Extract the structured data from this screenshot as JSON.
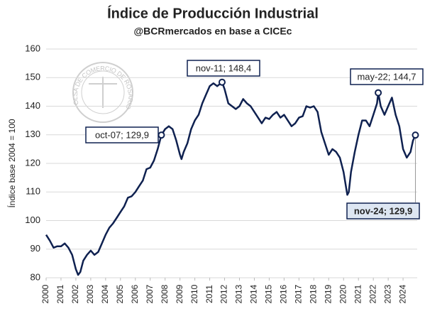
{
  "chart_data": {
    "type": "line",
    "title": "Índice de Producción Industrial",
    "subtitle": "@BCRmercados en base a CICEc",
    "y_label": "Índice base 2004 = 100",
    "watermark": "BOLSA DE COMERCIO DE ROSARIO",
    "color": "#0f2150",
    "x": [
      2000.0,
      2000.25,
      2000.5,
      2000.75,
      2001.0,
      2001.25,
      2001.5,
      2001.75,
      2002.0,
      2002.15,
      2002.3,
      2002.5,
      2002.75,
      2003.0,
      2003.25,
      2003.5,
      2003.75,
      2004.0,
      2004.25,
      2004.5,
      2004.75,
      2005.0,
      2005.25,
      2005.5,
      2005.75,
      2006.0,
      2006.25,
      2006.5,
      2006.75,
      2007.0,
      2007.25,
      2007.5,
      2007.75,
      2008.0,
      2008.25,
      2008.5,
      2008.75,
      2009.0,
      2009.1,
      2009.25,
      2009.5,
      2009.75,
      2010.0,
      2010.25,
      2010.5,
      2010.75,
      2011.0,
      2011.25,
      2011.5,
      2011.83,
      2012.0,
      2012.25,
      2012.5,
      2012.75,
      2013.0,
      2013.25,
      2013.5,
      2013.75,
      2014.0,
      2014.25,
      2014.5,
      2014.75,
      2015.0,
      2015.25,
      2015.5,
      2015.75,
      2016.0,
      2016.25,
      2016.5,
      2016.75,
      2017.0,
      2017.25,
      2017.5,
      2017.75,
      2018.0,
      2018.25,
      2018.5,
      2018.75,
      2019.0,
      2019.25,
      2019.5,
      2019.75,
      2020.0,
      2020.25,
      2020.35,
      2020.5,
      2020.75,
      2021.0,
      2021.25,
      2021.5,
      2021.75,
      2022.0,
      2022.25,
      2022.33,
      2022.5,
      2022.75,
      2023.0,
      2023.25,
      2023.5,
      2023.75,
      2024.0,
      2024.25,
      2024.5,
      2024.67,
      2024.83
    ],
    "values": [
      95,
      93,
      90.5,
      91,
      91,
      92,
      90.5,
      88,
      83,
      81,
      82,
      86,
      88,
      89.5,
      88,
      89,
      92,
      95,
      97.5,
      99,
      101,
      103,
      105,
      108,
      108.5,
      110,
      112,
      114,
      118,
      118.5,
      121,
      125,
      129.9,
      132,
      133,
      132,
      128,
      123,
      121.5,
      124,
      127,
      132,
      135,
      137,
      141,
      144,
      147,
      148,
      147,
      148.4,
      146,
      141,
      140,
      139,
      140,
      142.5,
      141,
      140,
      138,
      136,
      134,
      136,
      135.5,
      137,
      138,
      136,
      137,
      135,
      133,
      134,
      136,
      136.5,
      140,
      139.5,
      140,
      138,
      131,
      127,
      123,
      125,
      124,
      122,
      117,
      109,
      110,
      117,
      124,
      130,
      135,
      135,
      133,
      137,
      141,
      144.7,
      140,
      137,
      140,
      143,
      137,
      133,
      125,
      122,
      124,
      128,
      129.9
    ],
    "value_labels": [
      null,
      null,
      null,
      null,
      null,
      null,
      null,
      null,
      null,
      null,
      null,
      null,
      null,
      null,
      null,
      null,
      null,
      null,
      null,
      null,
      null,
      null,
      null,
      null,
      null,
      null,
      null,
      null,
      null,
      null,
      null,
      null,
      "oct-07; 129,9",
      null,
      null,
      null,
      null,
      null,
      null,
      null,
      null,
      null,
      null,
      null,
      null,
      null,
      null,
      null,
      null,
      "nov-11; 148,4",
      null,
      null,
      null,
      null,
      null,
      null,
      null,
      null,
      null,
      null,
      null,
      null,
      null,
      null,
      null,
      null,
      null,
      null,
      null,
      null,
      null,
      null,
      null,
      null,
      null,
      null,
      null,
      null,
      null,
      null,
      null,
      null,
      null,
      null,
      null,
      null,
      null,
      null,
      null,
      null,
      null,
      null,
      null,
      "may-22; 144,7",
      null,
      null,
      null,
      null,
      null,
      null,
      null,
      null,
      null,
      null,
      "nov-24; 129,9"
    ],
    "xlim": [
      2000,
      2024.95
    ],
    "xticks": [
      2000,
      2001,
      2002,
      2003,
      2004,
      2005,
      2006,
      2007,
      2008,
      2009,
      2010,
      2011,
      2012,
      2013,
      2014,
      2015,
      2016,
      2017,
      2018,
      2019,
      2020,
      2021,
      2022,
      2023,
      2024
    ],
    "ylim": [
      80,
      160
    ],
    "yticks": [
      80,
      90,
      100,
      110,
      120,
      130,
      140,
      150,
      160
    ],
    "grid": true
  }
}
